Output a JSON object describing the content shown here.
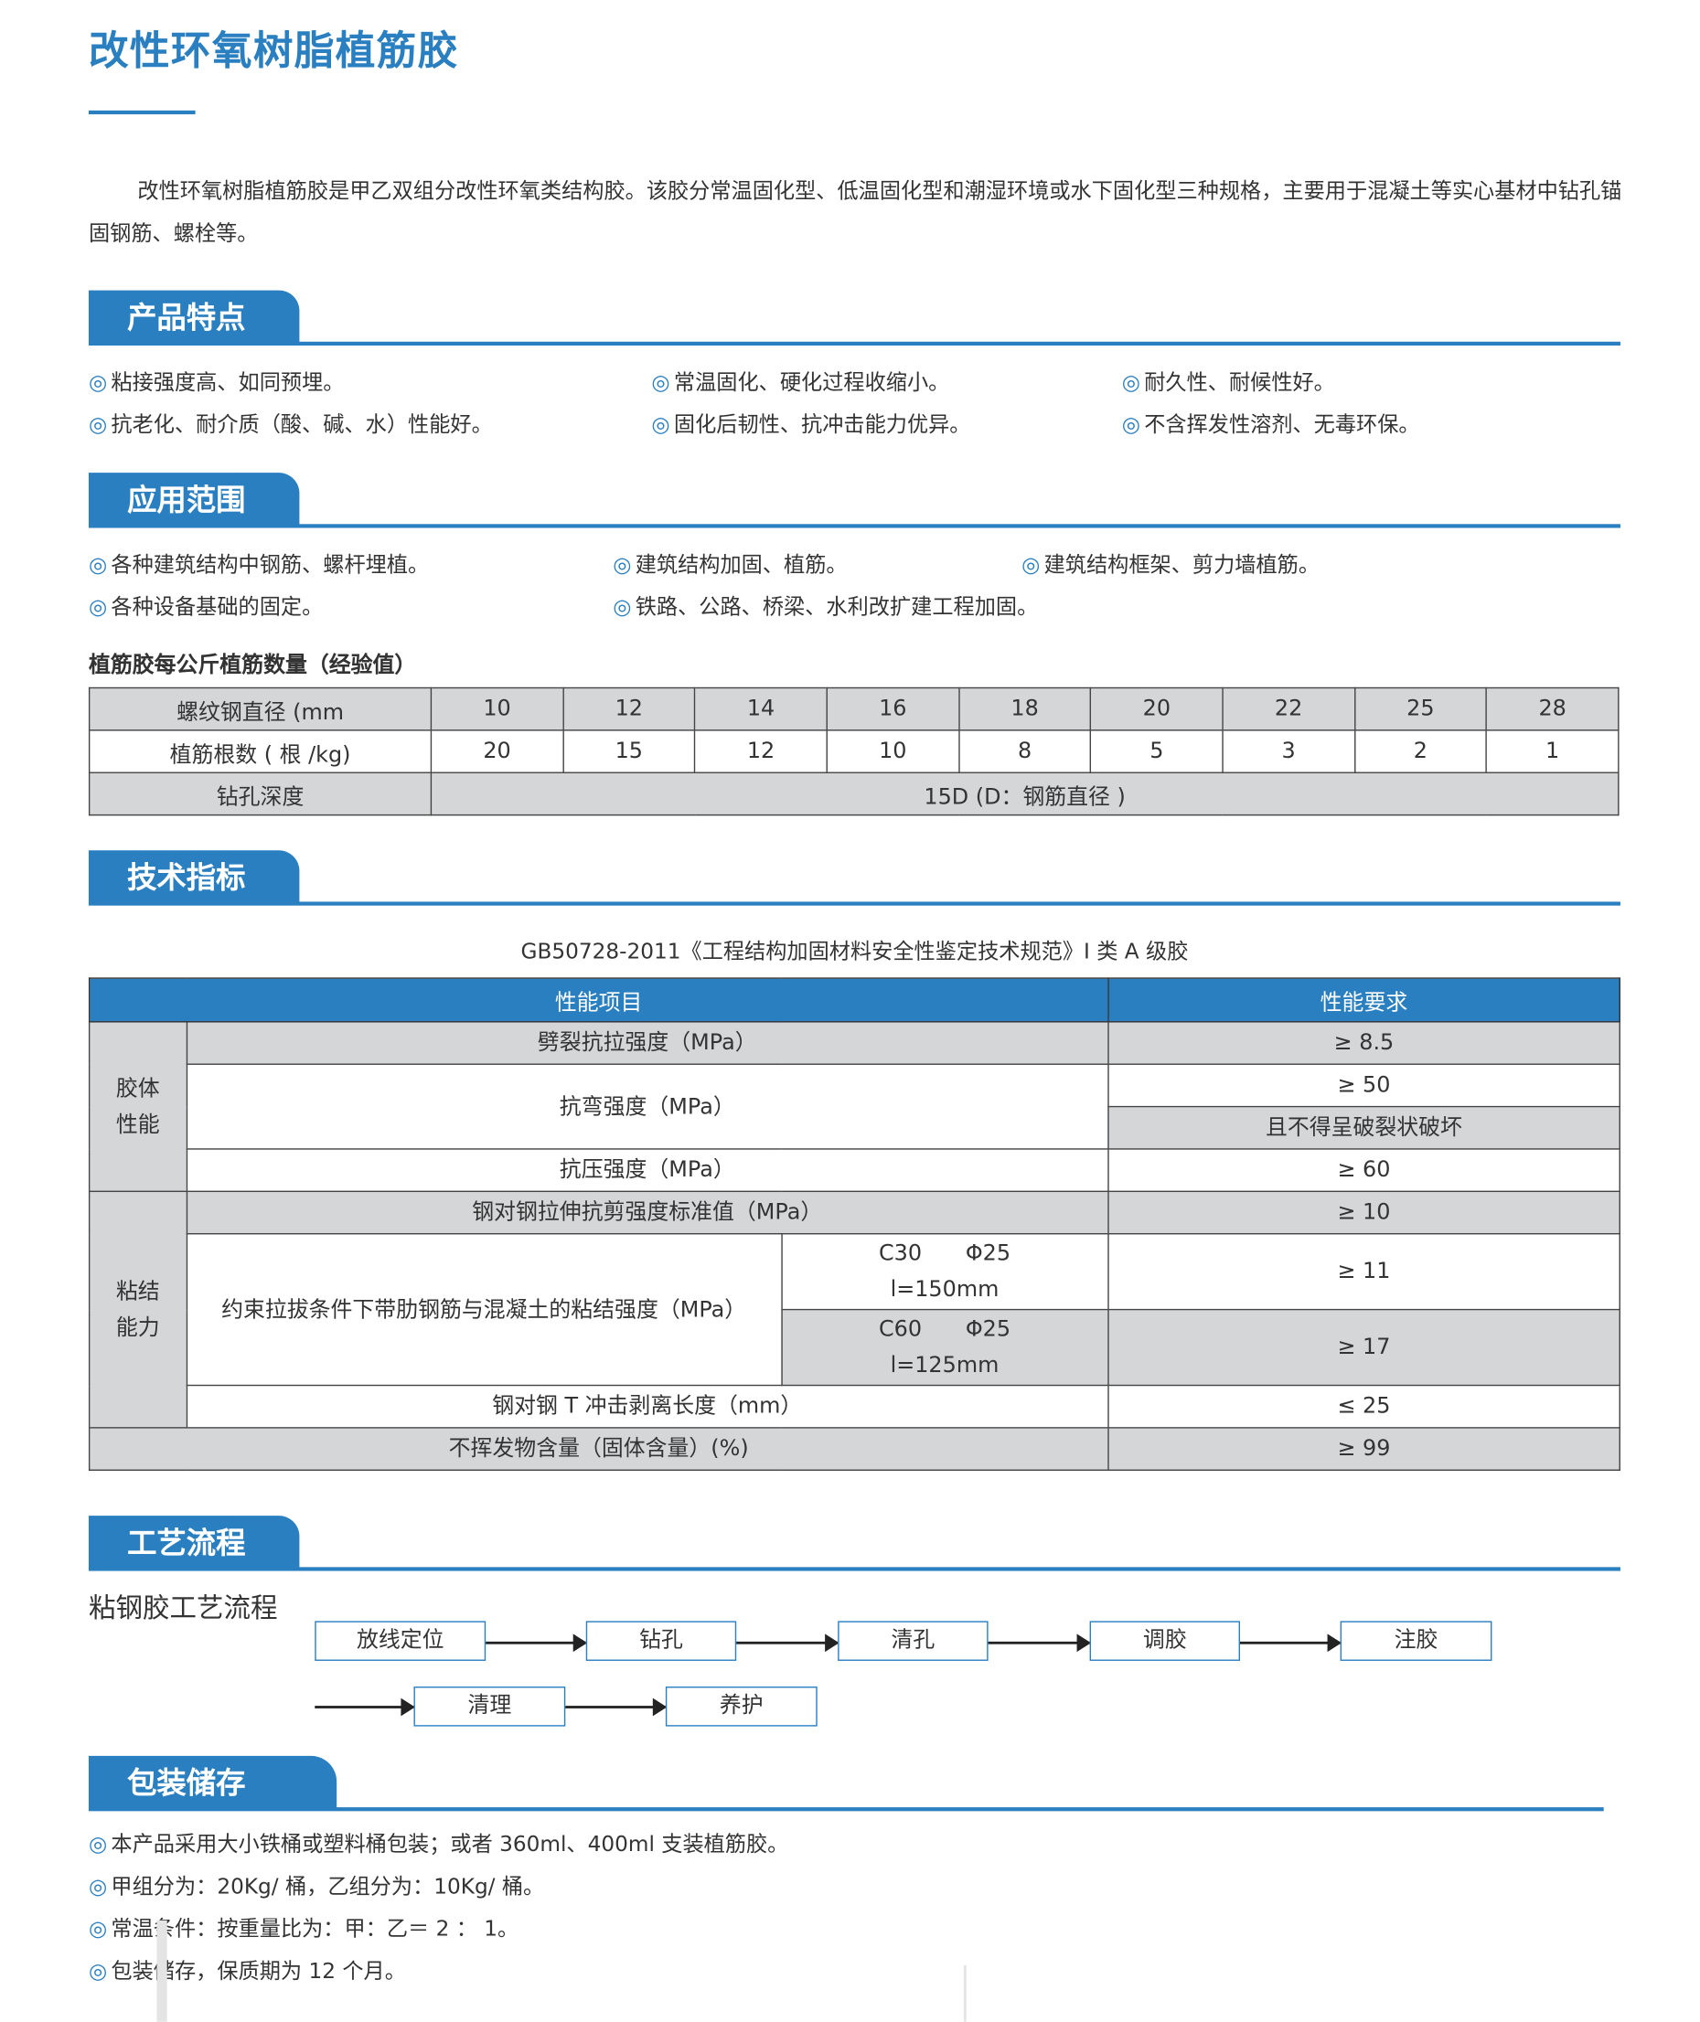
{
  "title": "改性环氧树脂植筋胶",
  "intro": "改性环氧树脂植筋胶是甲乙双组分改性环氧类结构胶。该胶分常温固化型、低温固化型和潮湿环境或水下固化型三种规格，主要用于混凝土等实心基材中钻孔锚固钢筋、螺栓等。",
  "bullet_icon": "◎",
  "accent_color": "#2a7fc1",
  "features": {
    "heading": "产品特点",
    "items": [
      "粘接强度高、如同预埋。",
      "常温固化、硬化过程收缩小。",
      "耐久性、耐候性好。",
      "抗老化、耐介质（酸、碱、水）性能好。",
      "固化后韧性、抗冲击能力优异。",
      "不含挥发性溶剂、无毒环保。"
    ]
  },
  "applications": {
    "heading": "应用范围",
    "items": [
      "各种建筑结构中钢筋、螺杆埋植。",
      "建筑结构加固、植筋。",
      "建筑结构框架、剪力墙植筋。",
      "各种设备基础的固定。",
      "铁路、公路、桥梁、水利改扩建工程加固。"
    ]
  },
  "rebar_table": {
    "label": "植筋胶每公斤植筋数量（经验值）",
    "row1_header": "螺纹钢直径 (mm",
    "diameters": [
      "10",
      "12",
      "14",
      "16",
      "18",
      "20",
      "22",
      "25",
      "28"
    ],
    "row2_header": "植筋根数 ( 根 /kg)",
    "counts": [
      "20",
      "15",
      "12",
      "10",
      "8",
      "5",
      "3",
      "2",
      "1"
    ],
    "row3_header": "钻孔深度",
    "depth": "15D (D：钢筋直径 )"
  },
  "tech": {
    "heading": "技术指标",
    "caption": "GB50728-2011《工程结构加固材料安全性鉴定技术规范》I 类 A 级胶",
    "col_item": "性能项目",
    "col_req": "性能要求",
    "group1": "胶体性能",
    "group2": "粘结能力",
    "rows": {
      "split": {
        "item": "劈裂抗拉强度（MPa）",
        "req": "≥ 8.5"
      },
      "bend": {
        "item": "抗弯强度（MPa）",
        "req": "≥ 50",
        "req2": "且不得呈破裂状破坏"
      },
      "compress": {
        "item": "抗压强度（MPa）",
        "req": "≥ 60"
      },
      "shear": {
        "item": "钢对钢拉伸抗剪强度标准值（MPa）",
        "req": "≥ 10"
      },
      "bond": {
        "item": "约束拉拔条件下带肋钢筋与混凝土的粘结强度（MPa）",
        "c30": "C30　　Φ25",
        "c30_l": "l=150mm",
        "c30_req": "≥ 11",
        "c60": "C60　　Φ25",
        "c60_l": "l=125mm",
        "c60_req": "≥ 17"
      },
      "peel": {
        "item": "钢对钢 T 冲击剥离长度（mm）",
        "req": "≤ 25"
      },
      "solid": {
        "item": "不挥发物含量（固体含量）(%)",
        "req": "≥ 99"
      }
    }
  },
  "process": {
    "heading": "工艺流程",
    "subtitle": "粘钢胶工艺流程",
    "steps": [
      "放线定位",
      "钻孔",
      "清孔",
      "调胶",
      "注胶",
      "清理",
      "养护"
    ]
  },
  "packaging": {
    "heading": "包装储存",
    "items": [
      "本产品采用大小铁桶或塑料桶包装；或者 360ml、400ml 支装植筋胶。",
      "甲组分为：20Kg/ 桶，乙组分为：10Kg/ 桶。",
      "常温条件：按重量比为：甲：乙＝ 2 ： 1。",
      "包装储存，保质期为 12 个月。"
    ]
  }
}
